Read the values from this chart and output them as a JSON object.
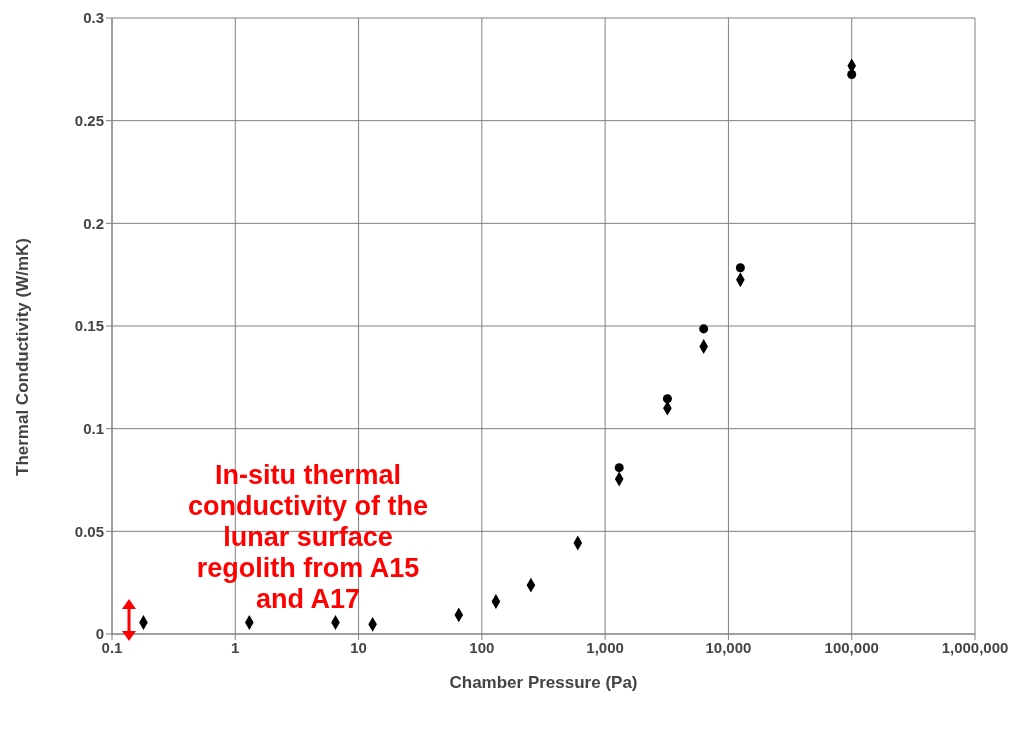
{
  "chart_data": {
    "type": "scatter",
    "xlabel": "Chamber Pressure (Pa)",
    "ylabel": "Thermal Conductivity (W/mK)",
    "log": "x",
    "xlim": [
      0.1,
      1000000
    ],
    "xticks": [
      0.1,
      1,
      10,
      100,
      {
        "value": 1000,
        "label": "1,000"
      },
      {
        "value": 10000,
        "label": "10,000"
      },
      {
        "value": 100000,
        "label": "100,000"
      },
      {
        "value": 1000000,
        "label": "1,000,000"
      }
    ],
    "ylim": [
      0,
      0.3
    ],
    "yticks": [
      0,
      0.05,
      0.1,
      0.15,
      0.2,
      0.25,
      0.3
    ],
    "grid": true,
    "series": [
      {
        "color": "#000000",
        "marker": "diamond",
        "x": [
          0.18,
          1.3,
          6.5,
          13,
          65,
          130,
          250,
          600,
          1300,
          3200,
          6300,
          12500,
          100000
        ],
        "values": [
          0.0056,
          0.0056,
          0.0056,
          0.0047,
          0.0093,
          0.0158,
          0.0238,
          0.0443,
          0.0755,
          0.11,
          0.14,
          0.1725,
          0.2767
        ]
      },
      {
        "color": "#000000",
        "marker": "circle",
        "x": [
          1300,
          3200,
          6300,
          12500,
          100000
        ],
        "values": [
          0.081,
          0.1146,
          0.1486,
          0.1784,
          0.2725
        ]
      }
    ],
    "annotations": [
      "In-situ thermal conductivity of the lunar surface regolith from A15 and A17"
    ]
  }
}
